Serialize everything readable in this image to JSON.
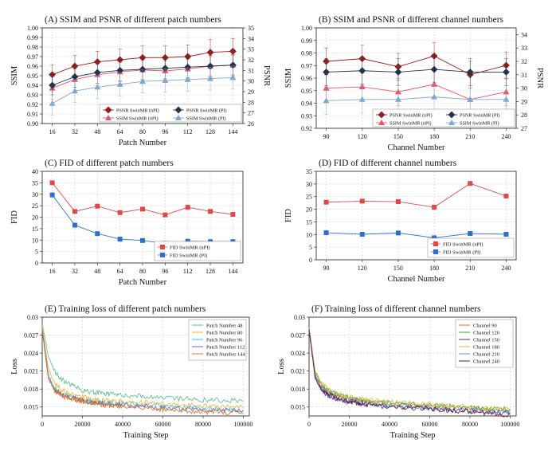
{
  "colors": {
    "psnr": "#a11a1a",
    "ssim": "#e8546a",
    "dark": "#1f3550",
    "light": "#7ea8cf",
    "fid_red": "#e04848",
    "fid_blue": "#2f6fd0",
    "grid": "#d0d0d0"
  },
  "chart_data": [
    {
      "id": "A",
      "type": "line",
      "title": "(A) SSIM and PSNR of different patch numbers",
      "xlabel": "Patch Number",
      "ylabel": "SSIM",
      "y2label": "PSNR",
      "categories": [
        "16",
        "32",
        "48",
        "64",
        "80",
        "96",
        "112",
        "128",
        "144"
      ],
      "ylim": [
        0.9,
        1.0
      ],
      "yticks": [
        "0.90",
        "0.91",
        "0.92",
        "0.93",
        "0.94",
        "0.95",
        "0.96",
        "0.97",
        "0.98",
        "0.99",
        "1.00"
      ],
      "y2lim": [
        26,
        35
      ],
      "y2ticks": [
        "26",
        "27",
        "28",
        "29",
        "30",
        "31",
        "32",
        "33",
        "34",
        "35"
      ],
      "series": [
        {
          "name": "PSNR SwinMR (nPI)",
          "axis": "right",
          "color": "psnr",
          "marker": "diamond",
          "values": [
            30.6,
            31.4,
            31.8,
            32.0,
            32.2,
            32.2,
            32.3,
            32.7,
            32.8
          ],
          "err": [
            0.9,
            1.0,
            1.0,
            1.0,
            1.1,
            1.1,
            1.1,
            1.2,
            1.2
          ]
        },
        {
          "name": "SSIM SwinMR (nPI)",
          "axis": "left",
          "color": "ssim",
          "marker": "triangle",
          "values": [
            0.937,
            0.946,
            0.951,
            0.954,
            0.956,
            0.955,
            0.957,
            0.96,
            0.961
          ],
          "err": [
            0.012,
            0.011,
            0.011,
            0.01,
            0.01,
            0.01,
            0.01,
            0.01,
            0.01
          ]
        },
        {
          "name": "PSNR SwinMR (PI)",
          "axis": "right",
          "color": "dark",
          "marker": "diamond",
          "values": [
            29.6,
            30.4,
            30.8,
            31.0,
            31.1,
            31.2,
            31.3,
            31.4,
            31.5
          ],
          "err": [
            0.9,
            1.0,
            1.0,
            1.0,
            1.0,
            1.0,
            1.0,
            1.0,
            1.0
          ]
        },
        {
          "name": "SSIM SwinMR (PI)",
          "axis": "left",
          "color": "light",
          "marker": "triangle",
          "values": [
            0.921,
            0.934,
            0.938,
            0.941,
            0.944,
            0.945,
            0.946,
            0.947,
            0.948
          ],
          "err": [
            0.012,
            0.012,
            0.012,
            0.012,
            0.012,
            0.012,
            0.012,
            0.012,
            0.012
          ]
        }
      ],
      "legend": "bottom-right"
    },
    {
      "id": "B",
      "type": "line",
      "title": "(B) SSIM and PSNR of different channel numbers",
      "xlabel": "Channel Number",
      "ylabel": "SSIM",
      "y2label": "PSNR",
      "categories": [
        "90",
        "120",
        "150",
        "180",
        "210",
        "240"
      ],
      "ylim": [
        0.92,
        1.0
      ],
      "yticks": [
        "0.92",
        "0.93",
        "0.94",
        "0.95",
        "0.96",
        "0.97",
        "0.98",
        "0.99",
        "1.00"
      ],
      "y2lim": [
        27,
        34.5
      ],
      "y2ticks": [
        "27",
        "28",
        "29",
        "30",
        "31",
        "32",
        "33",
        "34"
      ],
      "series": [
        {
          "name": "PSNR SwinMR (nPI)",
          "axis": "right",
          "color": "psnr",
          "marker": "diamond",
          "values": [
            32.0,
            32.2,
            31.6,
            32.4,
            31.0,
            31.7
          ],
          "err": [
            1.0,
            1.0,
            1.0,
            1.0,
            1.0,
            1.0
          ]
        },
        {
          "name": "SSIM SwinMR (nPI)",
          "axis": "left",
          "color": "ssim",
          "marker": "triangle",
          "values": [
            0.952,
            0.953,
            0.949,
            0.955,
            0.943,
            0.949
          ],
          "err": [
            0.011,
            0.011,
            0.011,
            0.011,
            0.011,
            0.011
          ]
        },
        {
          "name": "PSNR SwinMR (PI)",
          "axis": "right",
          "color": "dark",
          "marker": "diamond",
          "values": [
            31.2,
            31.3,
            31.2,
            31.4,
            31.2,
            31.2
          ],
          "err": [
            1.0,
            1.0,
            1.0,
            1.0,
            1.0,
            1.0
          ]
        },
        {
          "name": "SSIM SwinMR (PI)",
          "axis": "left",
          "color": "light",
          "marker": "triangle",
          "values": [
            0.942,
            0.943,
            0.943,
            0.945,
            0.943,
            0.943
          ],
          "err": [
            0.011,
            0.011,
            0.011,
            0.011,
            0.011,
            0.011
          ]
        }
      ],
      "legend": "bottom-right"
    },
    {
      "id": "C",
      "type": "line",
      "title": "(C) FID of different patch numbers",
      "xlabel": "Patch Number",
      "ylabel": "FID",
      "categories": [
        "16",
        "32",
        "48",
        "64",
        "80",
        "96",
        "112",
        "128",
        "144"
      ],
      "ylim": [
        0,
        40
      ],
      "yticks": [
        "0",
        "5",
        "10",
        "15",
        "20",
        "25",
        "30",
        "35",
        "40"
      ],
      "series": [
        {
          "name": "FID SwinMR (nPI)",
          "color": "fid_red",
          "marker": "square",
          "values": [
            35.0,
            22.5,
            24.8,
            22.0,
            23.5,
            21.0,
            24.3,
            22.5,
            21.2
          ]
        },
        {
          "name": "FID SwinMR (PI)",
          "color": "fid_blue",
          "marker": "square",
          "values": [
            29.7,
            16.5,
            12.8,
            10.4,
            9.8,
            8.5,
            9.5,
            9.3,
            9.3
          ]
        }
      ],
      "legend": "bottom-right"
    },
    {
      "id": "D",
      "type": "line",
      "title": "(D) FID of different channel numbers",
      "xlabel": "Channel Number",
      "ylabel": "FID",
      "categories": [
        "90",
        "120",
        "150",
        "180",
        "210",
        "240"
      ],
      "ylim": [
        0,
        35
      ],
      "yticks": [
        "0",
        "5",
        "10",
        "15",
        "20",
        "25",
        "30",
        "35"
      ],
      "series": [
        {
          "name": "FID SwinMR (nPI)",
          "color": "fid_red",
          "marker": "square",
          "values": [
            22.8,
            23.2,
            23.0,
            20.8,
            30.2,
            25.2
          ]
        },
        {
          "name": "FID SwinMR (PI)",
          "color": "fid_blue",
          "marker": "square",
          "values": [
            10.7,
            10.1,
            10.6,
            8.7,
            10.4,
            10.1
          ]
        }
      ],
      "legend": "bottom-right"
    },
    {
      "id": "E",
      "type": "line",
      "title": "(E) Training loss of different patch numbers",
      "xlabel": "Training Step",
      "ylabel": "Loss",
      "xlim": [
        0,
        103000
      ],
      "xticks": [
        "0",
        "20000",
        "40000",
        "60000",
        "80000",
        "100000"
      ],
      "ylim": [
        0.0135,
        0.03
      ],
      "yticks": [
        "0.015",
        "0.018",
        "0.021",
        "0.024",
        "0.027",
        "0.03"
      ],
      "series": [
        {
          "name": "Patch Number 48",
          "color": "#5cb88a",
          "x": [
            0,
            3000,
            6000,
            10000,
            15000,
            20000,
            25000,
            30000,
            35000,
            40000,
            50000,
            60000,
            70000,
            80000,
            90000,
            100000
          ],
          "values": [
            0.029,
            0.0235,
            0.021,
            0.0195,
            0.0185,
            0.0178,
            0.0175,
            0.0173,
            0.0171,
            0.017,
            0.0168,
            0.0166,
            0.0164,
            0.0162,
            0.0161,
            0.016
          ]
        },
        {
          "name": "Patch Number 80",
          "color": "#f0b030",
          "x": [
            0,
            3000,
            6000,
            10000,
            15000,
            20000,
            25000,
            30000,
            35000,
            40000,
            50000,
            60000,
            70000,
            80000,
            90000,
            100000
          ],
          "values": [
            0.0285,
            0.0215,
            0.019,
            0.0178,
            0.017,
            0.0166,
            0.0163,
            0.0161,
            0.016,
            0.0159,
            0.0157,
            0.0155,
            0.0153,
            0.0152,
            0.015,
            0.0149
          ]
        },
        {
          "name": "Patch Number 96",
          "color": "#3ec8d8",
          "x": [
            0,
            3000,
            6000,
            10000,
            15000,
            20000,
            25000,
            30000,
            35000,
            40000,
            50000,
            60000,
            70000,
            80000,
            90000,
            100000
          ],
          "values": [
            0.0282,
            0.0205,
            0.0182,
            0.0172,
            0.0166,
            0.0162,
            0.0159,
            0.0157,
            0.0156,
            0.0155,
            0.0153,
            0.0151,
            0.0149,
            0.0147,
            0.0146,
            0.0145
          ]
        },
        {
          "name": "Patch Number 112",
          "color": "#7a5aa8",
          "x": [
            0,
            3000,
            6000,
            10000,
            15000,
            20000,
            25000,
            30000,
            35000,
            40000,
            50000,
            60000,
            70000,
            80000,
            90000,
            100000
          ],
          "values": [
            0.028,
            0.02,
            0.018,
            0.017,
            0.0165,
            0.0161,
            0.0158,
            0.0156,
            0.0154,
            0.0153,
            0.0151,
            0.0149,
            0.0147,
            0.0146,
            0.0145,
            0.0144
          ]
        },
        {
          "name": "Patch Number 144",
          "color": "#e2701e",
          "x": [
            0,
            3000,
            6000,
            10000,
            15000,
            20000,
            25000,
            30000,
            35000,
            40000,
            50000,
            60000,
            70000,
            80000,
            90000,
            100000
          ],
          "values": [
            0.0278,
            0.0198,
            0.0178,
            0.0168,
            0.0163,
            0.0159,
            0.0156,
            0.0154,
            0.0152,
            0.0151,
            0.0149,
            0.0146,
            0.0144,
            0.0142,
            0.0141,
            0.0139
          ]
        }
      ],
      "legend": "top-right"
    },
    {
      "id": "F",
      "type": "line",
      "title": "(F) Training loss of different channel numbers",
      "xlabel": "Training Step",
      "ylabel": "Loss",
      "xlim": [
        0,
        103000
      ],
      "xticks": [
        "0",
        "20000",
        "40000",
        "60000",
        "80000",
        "100000"
      ],
      "ylim": [
        0.0135,
        0.03
      ],
      "yticks": [
        "0.015",
        "0.018",
        "0.021",
        "0.024",
        "0.027",
        "0.03"
      ],
      "series": [
        {
          "name": "Channel 90",
          "color": "#e2701e",
          "x": [
            0,
            3000,
            6000,
            10000,
            15000,
            20000,
            25000,
            30000,
            40000,
            50000,
            60000,
            70000,
            80000,
            90000,
            100000
          ],
          "values": [
            0.028,
            0.0205,
            0.0185,
            0.0174,
            0.0168,
            0.0164,
            0.0161,
            0.0159,
            0.0156,
            0.0154,
            0.0152,
            0.015,
            0.0148,
            0.0146,
            0.0145
          ]
        },
        {
          "name": "Channel 120",
          "color": "#3a9a3a",
          "x": [
            0,
            3000,
            6000,
            10000,
            15000,
            20000,
            25000,
            30000,
            40000,
            50000,
            60000,
            70000,
            80000,
            90000,
            100000
          ],
          "values": [
            0.0282,
            0.021,
            0.0188,
            0.0176,
            0.017,
            0.0166,
            0.0163,
            0.016,
            0.0157,
            0.0155,
            0.0153,
            0.0151,
            0.0149,
            0.0147,
            0.0146
          ]
        },
        {
          "name": "Channel 150",
          "color": "#5a2a8a",
          "x": [
            0,
            3000,
            6000,
            10000,
            15000,
            20000,
            25000,
            30000,
            40000,
            50000,
            60000,
            70000,
            80000,
            90000,
            100000
          ],
          "values": [
            0.0278,
            0.0198,
            0.0178,
            0.0168,
            0.0162,
            0.0158,
            0.0155,
            0.0153,
            0.015,
            0.0148,
            0.0147,
            0.0145,
            0.0143,
            0.0141,
            0.0139
          ]
        },
        {
          "name": "Channel 180",
          "color": "#d8c030",
          "x": [
            0,
            3000,
            6000,
            10000,
            15000,
            20000,
            25000,
            30000,
            40000,
            50000,
            60000,
            70000,
            80000,
            90000,
            100000
          ],
          "values": [
            0.0283,
            0.0212,
            0.019,
            0.0178,
            0.0171,
            0.0167,
            0.0164,
            0.0161,
            0.0158,
            0.0156,
            0.0154,
            0.0152,
            0.015,
            0.0148,
            0.0147
          ]
        },
        {
          "name": "Channel 210",
          "color": "#4aa0d8",
          "x": [
            0,
            3000,
            6000,
            10000,
            15000,
            20000,
            25000,
            30000,
            40000,
            50000,
            60000,
            70000,
            80000,
            90000,
            100000
          ],
          "values": [
            0.0281,
            0.0203,
            0.0182,
            0.0171,
            0.0165,
            0.0161,
            0.0158,
            0.0156,
            0.0153,
            0.0151,
            0.0149,
            0.0147,
            0.0145,
            0.0143,
            0.0142
          ]
        },
        {
          "name": "Channel 240",
          "color": "#6a1a3a",
          "x": [
            0,
            3000,
            6000,
            10000,
            15000,
            20000,
            25000,
            30000,
            40000,
            50000,
            60000,
            70000,
            80000,
            90000,
            100000
          ],
          "values": [
            0.0279,
            0.02,
            0.018,
            0.017,
            0.0164,
            0.016,
            0.0157,
            0.0154,
            0.0151,
            0.0149,
            0.0147,
            0.0145,
            0.0142,
            0.014,
            0.0137
          ]
        }
      ],
      "legend": "top-right"
    }
  ]
}
